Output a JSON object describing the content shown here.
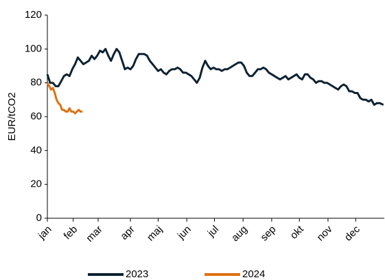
{
  "chart_data": {
    "type": "line",
    "y_label": "EUR/tCO2",
    "xlim": [
      0,
      365
    ],
    "ylim": [
      0,
      120
    ],
    "yticks": [
      0,
      20,
      40,
      60,
      80,
      100,
      120
    ],
    "xticks": [
      {
        "value": 0,
        "label": "jan"
      },
      {
        "value": 28,
        "label": "feb"
      },
      {
        "value": 55,
        "label": "mar"
      },
      {
        "value": 90,
        "label": "apr"
      },
      {
        "value": 120,
        "label": "maj"
      },
      {
        "value": 151,
        "label": "jun"
      },
      {
        "value": 181,
        "label": "jul"
      },
      {
        "value": 212,
        "label": "aug"
      },
      {
        "value": 243,
        "label": "sep"
      },
      {
        "value": 273,
        "label": "okt"
      },
      {
        "value": 304,
        "label": "nov"
      },
      {
        "value": 334,
        "label": "dec"
      }
    ],
    "series": [
      {
        "name": "2023",
        "color": "#0d2231",
        "x": [
          0,
          3,
          6,
          9,
          12,
          15,
          18,
          21,
          24,
          27,
          30,
          33,
          36,
          39,
          42,
          45,
          48,
          51,
          54,
          57,
          60,
          63,
          66,
          69,
          72,
          75,
          78,
          81,
          84,
          87,
          90,
          93,
          96,
          99,
          102,
          105,
          108,
          111,
          114,
          117,
          120,
          123,
          126,
          129,
          132,
          135,
          138,
          141,
          144,
          147,
          150,
          153,
          156,
          159,
          162,
          165,
          168,
          171,
          174,
          177,
          180,
          183,
          186,
          189,
          192,
          195,
          198,
          201,
          204,
          207,
          210,
          213,
          216,
          219,
          222,
          225,
          228,
          231,
          234,
          237,
          240,
          243,
          246,
          249,
          252,
          255,
          258,
          261,
          264,
          267,
          270,
          273,
          276,
          279,
          282,
          285,
          288,
          291,
          294,
          297,
          300,
          303,
          306,
          309,
          312,
          315,
          318,
          321,
          324,
          327,
          330,
          333,
          336,
          339,
          342,
          345,
          348,
          351,
          354,
          357,
          360,
          364
        ],
        "values": [
          85,
          80,
          80,
          78,
          78,
          81,
          84,
          85,
          84,
          88,
          91,
          95,
          93,
          91,
          92,
          93,
          96,
          94,
          96,
          99,
          98,
          100,
          96,
          93,
          97,
          100,
          98,
          93,
          88,
          89,
          88,
          90,
          94,
          97,
          97,
          97,
          96,
          93,
          91,
          89,
          87,
          88,
          86,
          85,
          87,
          88,
          88,
          89,
          88,
          86,
          86,
          85,
          84,
          82,
          80,
          83,
          89,
          93,
          90,
          88,
          89,
          88,
          88,
          87,
          88,
          88,
          89,
          90,
          91,
          92,
          92,
          90,
          86,
          84,
          84,
          86,
          88,
          88,
          89,
          88,
          86,
          85,
          84,
          83,
          82,
          83,
          84,
          82,
          83,
          84,
          85,
          83,
          82,
          85,
          85,
          83,
          82,
          80,
          81,
          81,
          80,
          80,
          79,
          78,
          77,
          76,
          78,
          79,
          78,
          75,
          75,
          74,
          74,
          71,
          70,
          70,
          69,
          70,
          67,
          68,
          68,
          67
        ]
      },
      {
        "name": "2024",
        "color": "#e07010",
        "x": [
          0,
          2,
          4,
          6,
          8,
          10,
          12,
          14,
          16,
          18,
          20,
          22,
          24,
          26,
          28,
          30,
          32,
          34,
          36,
          38
        ],
        "values": [
          80,
          78,
          76,
          77,
          74,
          70,
          68,
          67,
          64,
          64,
          63,
          63,
          65,
          63,
          63,
          62,
          63,
          64,
          63,
          63
        ]
      }
    ]
  }
}
